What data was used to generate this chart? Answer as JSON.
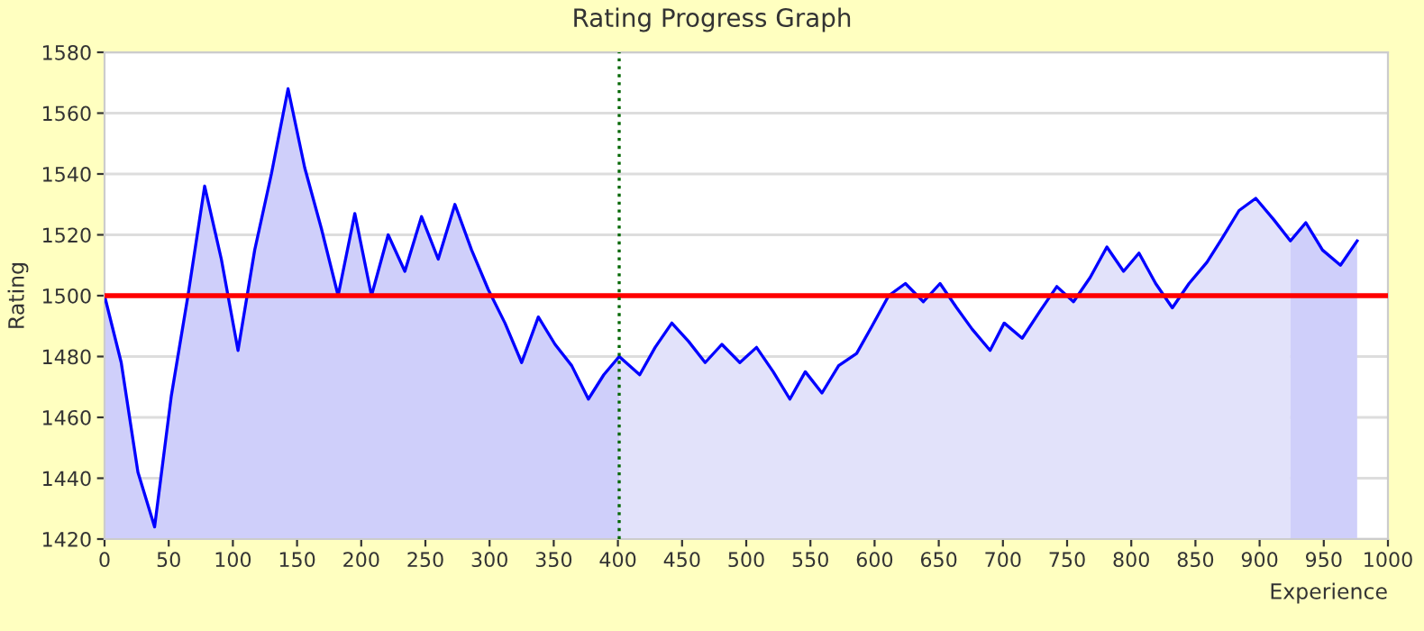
{
  "chart_data": {
    "type": "line",
    "title": "Rating Progress Graph",
    "xlabel": "Experience",
    "ylabel": "Rating",
    "xlim": [
      0,
      1000
    ],
    "xticks": [
      0,
      50,
      100,
      150,
      200,
      250,
      300,
      350,
      400,
      450,
      500,
      550,
      600,
      650,
      700,
      750,
      800,
      850,
      900,
      950,
      1000
    ],
    "ylim": [
      1420,
      1580
    ],
    "yticks": [
      1420,
      1440,
      1460,
      1480,
      1500,
      1520,
      1540,
      1560,
      1580
    ],
    "grid": "y",
    "marker": "none",
    "line_style": "solid",
    "series": [
      {
        "type": "area",
        "color": "#cfcffa",
        "x": [
          0,
          13,
          26,
          39,
          52,
          65,
          78,
          91,
          104,
          117,
          130,
          143,
          156,
          169,
          182,
          195,
          208,
          221,
          234,
          247,
          260,
          273,
          286,
          299,
          312,
          325,
          338,
          351,
          364,
          377,
          389,
          401
        ],
        "values": [
          1500,
          1478,
          1442,
          1424,
          1467,
          1500,
          1536,
          1512,
          1482,
          1515,
          1540,
          1568,
          1542,
          1522,
          1500,
          1527,
          1500,
          1520,
          1508,
          1526,
          1512,
          1530,
          1515,
          1502,
          1491,
          1478,
          1493,
          1484,
          1477,
          1466,
          1474,
          1480
        ]
      },
      {
        "type": "area",
        "color": "#e2e2fa",
        "x": [
          401,
          417,
          429,
          442,
          455,
          468,
          481,
          495,
          508,
          521,
          534,
          546,
          559,
          572,
          586,
          598,
          611,
          624,
          638,
          651,
          664,
          676,
          690,
          701,
          715,
          729,
          742,
          755,
          768,
          781,
          794,
          806,
          819,
          832,
          845,
          859,
          871,
          884,
          897,
          911,
          924
        ],
        "values": [
          1480,
          1474,
          1483,
          1491,
          1485,
          1478,
          1484,
          1478,
          1483,
          1475,
          1466,
          1475,
          1468,
          1477,
          1481,
          1490,
          1500,
          1504,
          1498,
          1504,
          1496,
          1489,
          1482,
          1491,
          1486,
          1495,
          1503,
          1498,
          1506,
          1516,
          1508,
          1514,
          1504,
          1496,
          1504,
          1511,
          1519,
          1528,
          1532,
          1525,
          1518
        ]
      },
      {
        "type": "area",
        "color": "#cfcffa",
        "x": [
          924,
          936,
          949,
          963,
          976
        ],
        "values": [
          1518,
          1524,
          1515,
          1510,
          1518
        ]
      },
      {
        "type": "line",
        "color": "#0000ff",
        "x": [
          0,
          13,
          26,
          39,
          52,
          65,
          78,
          91,
          104,
          117,
          130,
          143,
          156,
          169,
          182,
          195,
          208,
          221,
          234,
          247,
          260,
          273,
          286,
          299,
          312,
          325,
          338,
          351,
          364,
          377,
          389,
          401,
          417,
          429,
          442,
          455,
          468,
          481,
          495,
          508,
          521,
          534,
          546,
          559,
          572,
          586,
          598,
          611,
          624,
          638,
          651,
          664,
          676,
          690,
          701,
          715,
          729,
          742,
          755,
          768,
          781,
          794,
          806,
          819,
          832,
          845,
          859,
          871,
          884,
          897,
          911,
          924,
          936,
          949,
          963,
          976
        ],
        "values": [
          1500,
          1478,
          1442,
          1424,
          1467,
          1500,
          1536,
          1512,
          1482,
          1515,
          1540,
          1568,
          1542,
          1522,
          1500,
          1527,
          1500,
          1520,
          1508,
          1526,
          1512,
          1530,
          1515,
          1502,
          1491,
          1478,
          1493,
          1484,
          1477,
          1466,
          1474,
          1480,
          1474,
          1483,
          1491,
          1485,
          1478,
          1484,
          1478,
          1483,
          1475,
          1466,
          1475,
          1468,
          1477,
          1481,
          1490,
          1500,
          1504,
          1498,
          1504,
          1496,
          1489,
          1482,
          1491,
          1486,
          1495,
          1503,
          1498,
          1506,
          1516,
          1508,
          1514,
          1504,
          1496,
          1504,
          1511,
          1519,
          1528,
          1532,
          1525,
          1518,
          1524,
          1515,
          1510,
          1518
        ]
      }
    ],
    "ref_lines": [
      {
        "axis": "y",
        "value": 1500,
        "color": "#ff0000",
        "line_style": "solid"
      },
      {
        "axis": "x",
        "value": 401,
        "color": "#006600",
        "line_style": "dotted"
      }
    ]
  }
}
